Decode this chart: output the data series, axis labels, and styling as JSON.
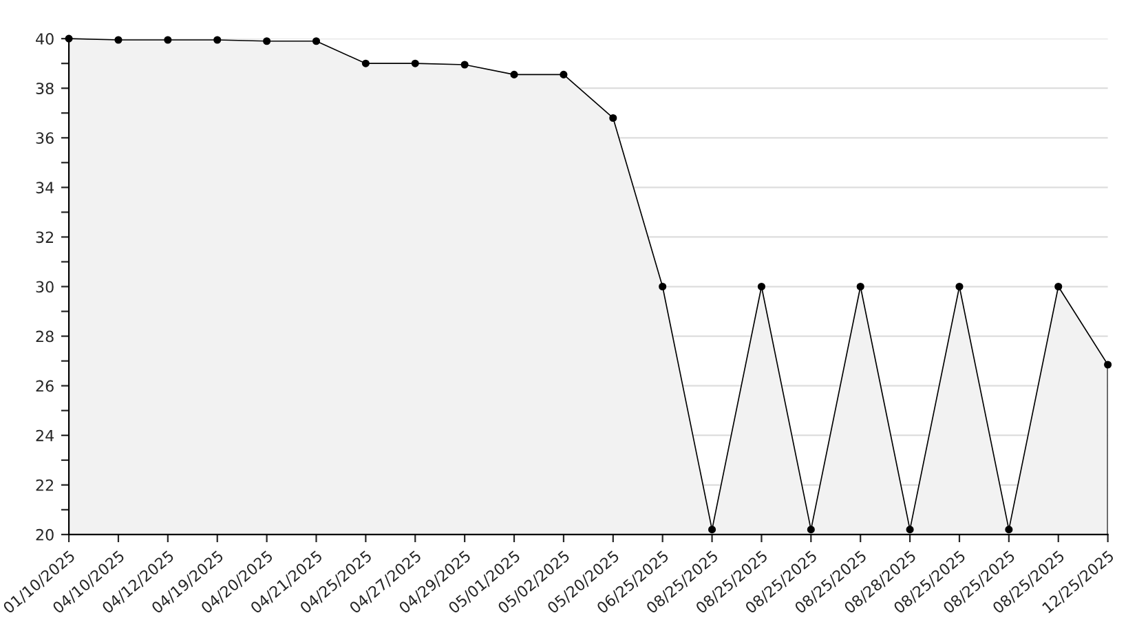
{
  "chart_data": {
    "type": "area",
    "categories": [
      "01/10/2025",
      "04/10/2025",
      "04/12/2025",
      "04/19/2025",
      "04/20/2025",
      "04/21/2025",
      "04/25/2025",
      "04/27/2025",
      "04/29/2025",
      "05/01/2025",
      "05/02/2025",
      "05/20/2025",
      "06/25/2025",
      "08/25/2025",
      "08/25/2025",
      "08/25/2025",
      "08/25/2025",
      "08/28/2025",
      "08/25/2025",
      "08/25/2025",
      "08/25/2025",
      "12/25/2025"
    ],
    "series": [
      {
        "color": "#f2f2f2",
        "values": [
          40,
          39.95,
          39.95,
          39.95,
          39.9,
          39.9,
          39.0,
          39.0,
          38.95,
          38.55,
          38.55,
          36.8,
          30,
          20.2,
          30,
          20.2,
          30,
          20.2,
          30,
          20.2,
          30,
          26.85
        ]
      }
    ],
    "ylim": [
      20,
      40
    ],
    "yticks": [
      20,
      {
        "value": 21,
        "label": null
      },
      22,
      {
        "value": 23,
        "label": null
      },
      24,
      {
        "value": 25,
        "label": null
      },
      26,
      {
        "value": 27,
        "label": null
      },
      28,
      {
        "value": 29,
        "label": null
      },
      30,
      {
        "value": 31,
        "label": null
      },
      32,
      {
        "value": 33,
        "label": null
      },
      34,
      {
        "value": 35,
        "label": null
      },
      36,
      {
        "value": 37,
        "label": null
      },
      38,
      {
        "value": 39,
        "label": null
      },
      40
    ],
    "grid": "y",
    "marker": "circle",
    "line_style": "solid",
    "legend": false
  }
}
